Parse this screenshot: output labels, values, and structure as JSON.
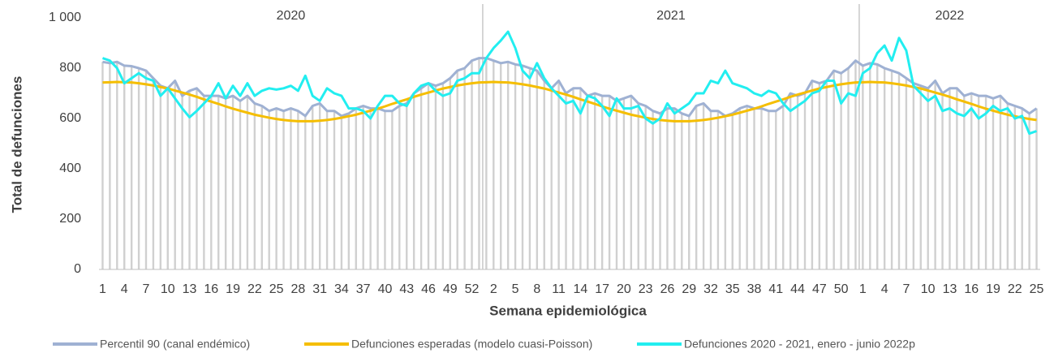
{
  "chart_data": {
    "type": "line",
    "y_axis_label": "Total de defunciones",
    "x_axis_label": "Semana epidemiológica",
    "years": [
      "2020",
      "2021",
      "2022"
    ],
    "categories": [
      1,
      null,
      null,
      4,
      null,
      null,
      7,
      null,
      null,
      10,
      null,
      null,
      13,
      null,
      null,
      16,
      null,
      null,
      19,
      null,
      null,
      22,
      null,
      null,
      25,
      null,
      null,
      28,
      null,
      null,
      31,
      null,
      null,
      34,
      null,
      null,
      37,
      null,
      null,
      40,
      null,
      null,
      43,
      null,
      null,
      46,
      null,
      null,
      49,
      null,
      null,
      52,
      null,
      null,
      2,
      null,
      null,
      5,
      null,
      null,
      8,
      null,
      null,
      11,
      null,
      null,
      14,
      null,
      null,
      17,
      null,
      null,
      20,
      null,
      null,
      23,
      null,
      null,
      26,
      null,
      null,
      29,
      null,
      null,
      32,
      null,
      null,
      35,
      null,
      null,
      38,
      null,
      null,
      41,
      null,
      null,
      44,
      null,
      null,
      47,
      null,
      null,
      50,
      null,
      null,
      1,
      null,
      null,
      4,
      null,
      null,
      7,
      null,
      null,
      10,
      null,
      null,
      13,
      null,
      null,
      16,
      null,
      null,
      19,
      null,
      null,
      22,
      null,
      null,
      25
    ],
    "series": [
      {
        "name": "Percentil 90 (canal endémico)",
        "color": "#9fb1d3",
        "columns": true,
        "values": [
          825,
          820,
          825,
          810,
          808,
          800,
          790,
          760,
          730,
          720,
          750,
          690,
          710,
          720,
          690,
          690,
          690,
          680,
          690,
          670,
          690,
          660,
          650,
          630,
          640,
          630,
          640,
          630,
          610,
          650,
          660,
          630,
          630,
          610,
          620,
          640,
          650,
          640,
          640,
          630,
          630,
          650,
          660,
          700,
          720,
          740,
          730,
          740,
          760,
          790,
          800,
          830,
          840,
          840,
          830,
          820,
          825,
          815,
          810,
          800,
          790,
          750,
          720,
          750,
          700,
          720,
          720,
          690,
          700,
          690,
          690,
          670,
          680,
          690,
          660,
          650,
          630,
          620,
          640,
          640,
          620,
          610,
          650,
          660,
          630,
          630,
          610,
          620,
          640,
          650,
          640,
          640,
          630,
          630,
          650,
          700,
          690,
          700,
          750,
          740,
          750,
          790,
          780,
          800,
          830,
          810,
          820,
          815,
          800,
          790,
          780,
          760,
          740,
          730,
          720,
          750,
          700,
          720,
          720,
          690,
          700,
          690,
          690,
          680,
          690,
          660,
          650,
          640,
          620,
          640
        ]
      },
      {
        "name": "Defunciones esperadas (modelo cuasi-Poisson)",
        "color": "#f5be00",
        "values": [
          743,
          744,
          745,
          744,
          743,
          740,
          736,
          731,
          725,
          719,
          711,
          703,
          695,
          686,
          676,
          667,
          658,
          648,
          639,
          631,
          623,
          615,
          609,
          603,
          598,
          594,
          591,
          589,
          589,
          589,
          591,
          594,
          598,
          603,
          609,
          615,
          623,
          631,
          639,
          648,
          658,
          667,
          676,
          686,
          695,
          703,
          711,
          719,
          725,
          731,
          736,
          740,
          743,
          744,
          745,
          744,
          743,
          740,
          736,
          731,
          725,
          719,
          711,
          703,
          695,
          686,
          676,
          667,
          658,
          648,
          639,
          631,
          623,
          615,
          609,
          603,
          598,
          594,
          591,
          589,
          589,
          589,
          591,
          594,
          598,
          603,
          609,
          615,
          623,
          631,
          639,
          648,
          658,
          667,
          676,
          686,
          695,
          703,
          711,
          719,
          725,
          731,
          736,
          740,
          743,
          744,
          745,
          744,
          743,
          740,
          736,
          731,
          725,
          719,
          711,
          703,
          695,
          686,
          676,
          667,
          658,
          648,
          639,
          631,
          623,
          615,
          609,
          603,
          598,
          594
        ]
      },
      {
        "name": "Defunciones 2020 - 2021, enero - junio 2022p",
        "color": "#22eef0",
        "values": [
          840,
          830,
          800,
          740,
          760,
          780,
          760,
          750,
          690,
          720,
          680,
          640,
          605,
          630,
          660,
          690,
          740,
          680,
          730,
          690,
          740,
          690,
          710,
          720,
          715,
          720,
          730,
          710,
          770,
          690,
          670,
          720,
          700,
          690,
          640,
          640,
          630,
          600,
          650,
          690,
          690,
          660,
          650,
          700,
          730,
          740,
          710,
          690,
          700,
          750,
          760,
          780,
          780,
          840,
          880,
          910,
          945,
          880,
          790,
          760,
          820,
          760,
          720,
          690,
          660,
          670,
          620,
          690,
          680,
          650,
          610,
          680,
          640,
          640,
          650,
          600,
          580,
          600,
          660,
          620,
          640,
          660,
          700,
          700,
          750,
          740,
          790,
          740,
          730,
          720,
          700,
          690,
          710,
          700,
          660,
          630,
          650,
          670,
          700,
          710,
          750,
          750,
          660,
          700,
          690,
          780,
          800,
          860,
          890,
          830,
          920,
          870,
          730,
          700,
          670,
          690,
          630,
          640,
          620,
          610,
          640,
          600,
          620,
          650,
          630,
          640,
          600,
          610,
          540,
          550
        ]
      }
    ],
    "ylim": [
      0,
      1000
    ],
    "yticks": [
      0,
      200,
      400,
      600,
      800,
      {
        "value": 1000,
        "label": "1 000"
      }
    ],
    "grid": false
  }
}
